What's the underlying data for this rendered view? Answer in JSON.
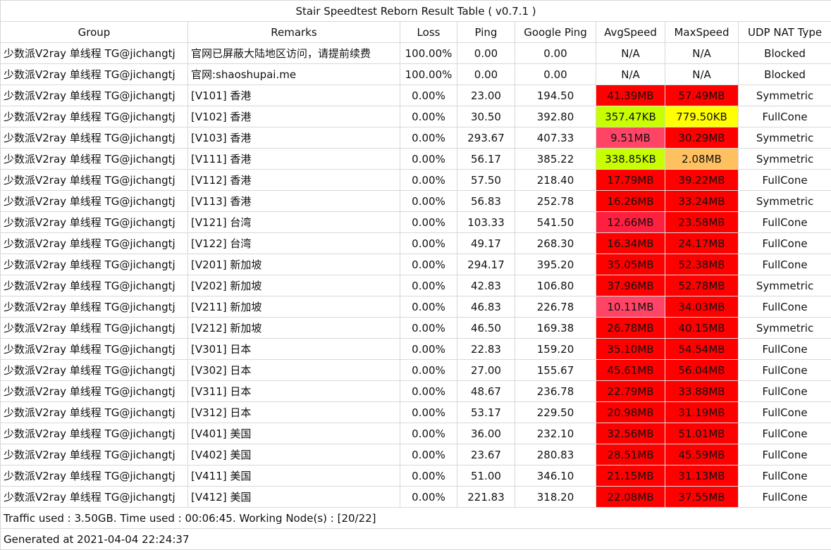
{
  "title": "Stair Speedtest Reborn Result Table ( v0.7.1 )",
  "headers": [
    "Group",
    "Remarks",
    "Loss",
    "Ping",
    "Google Ping",
    "AvgSpeed",
    "MaxSpeed",
    "UDP NAT Type"
  ],
  "rows": [
    [
      "少数派V2ray 单线程 TG@jichangtj",
      "官网已屏蔽大陆地区访问，请提前续费",
      "100.00%",
      "0.00",
      "0.00",
      "N/A",
      "N/A",
      "Blocked"
    ],
    [
      "少数派V2ray 单线程 TG@jichangtj",
      "官网:shaoshupai.me",
      "100.00%",
      "0.00",
      "0.00",
      "N/A",
      "N/A",
      "Blocked"
    ],
    [
      "少数派V2ray 单线程 TG@jichangtj",
      "[V101] 香港",
      "0.00%",
      "23.00",
      "194.50",
      "41.39MB",
      "57.49MB",
      "Symmetric"
    ],
    [
      "少数派V2ray 单线程 TG@jichangtj",
      "[V102] 香港",
      "0.00%",
      "30.50",
      "392.80",
      "357.47KB",
      "779.50KB",
      "FullCone"
    ],
    [
      "少数派V2ray 单线程 TG@jichangtj",
      "[V103] 香港",
      "0.00%",
      "293.67",
      "407.33",
      "9.51MB",
      "30.29MB",
      "Symmetric"
    ],
    [
      "少数派V2ray 单线程 TG@jichangtj",
      "[V111] 香港",
      "0.00%",
      "56.17",
      "385.22",
      "338.85KB",
      "2.08MB",
      "Symmetric"
    ],
    [
      "少数派V2ray 单线程 TG@jichangtj",
      "[V112] 香港",
      "0.00%",
      "57.50",
      "218.40",
      "17.79MB",
      "39.22MB",
      "FullCone"
    ],
    [
      "少数派V2ray 单线程 TG@jichangtj",
      "[V113] 香港",
      "0.00%",
      "56.83",
      "252.78",
      "16.26MB",
      "33.24MB",
      "Symmetric"
    ],
    [
      "少数派V2ray 单线程 TG@jichangtj",
      "[V121] 台湾",
      "0.00%",
      "103.33",
      "541.50",
      "12.66MB",
      "23.58MB",
      "FullCone"
    ],
    [
      "少数派V2ray 单线程 TG@jichangtj",
      "[V122] 台湾",
      "0.00%",
      "49.17",
      "268.30",
      "16.34MB",
      "24.17MB",
      "FullCone"
    ],
    [
      "少数派V2ray 单线程 TG@jichangtj",
      "[V201] 新加坡",
      "0.00%",
      "294.17",
      "395.20",
      "35.05MB",
      "52.38MB",
      "FullCone"
    ],
    [
      "少数派V2ray 单线程 TG@jichangtj",
      "[V202] 新加坡",
      "0.00%",
      "42.83",
      "106.80",
      "37.96MB",
      "52.78MB",
      "Symmetric"
    ],
    [
      "少数派V2ray 单线程 TG@jichangtj",
      "[V211] 新加坡",
      "0.00%",
      "46.83",
      "226.78",
      "10.11MB",
      "34.03MB",
      "FullCone"
    ],
    [
      "少数派V2ray 单线程 TG@jichangtj",
      "[V212] 新加坡",
      "0.00%",
      "46.50",
      "169.38",
      "26.78MB",
      "40.15MB",
      "Symmetric"
    ],
    [
      "少数派V2ray 单线程 TG@jichangtj",
      "[V301] 日本",
      "0.00%",
      "22.83",
      "159.20",
      "35.10MB",
      "54.54MB",
      "FullCone"
    ],
    [
      "少数派V2ray 单线程 TG@jichangtj",
      "[V302] 日本",
      "0.00%",
      "27.00",
      "155.67",
      "45.61MB",
      "56.04MB",
      "FullCone"
    ],
    [
      "少数派V2ray 单线程 TG@jichangtj",
      "[V311] 日本",
      "0.00%",
      "48.67",
      "236.78",
      "22.79MB",
      "33.88MB",
      "FullCone"
    ],
    [
      "少数派V2ray 单线程 TG@jichangtj",
      "[V312] 日本",
      "0.00%",
      "53.17",
      "229.50",
      "20.98MB",
      "31.19MB",
      "FullCone"
    ],
    [
      "少数派V2ray 单线程 TG@jichangtj",
      "[V401] 美国",
      "0.00%",
      "36.00",
      "232.10",
      "32.56MB",
      "51.01MB",
      "FullCone"
    ],
    [
      "少数派V2ray 单线程 TG@jichangtj",
      "[V402] 美国",
      "0.00%",
      "23.67",
      "280.83",
      "28.51MB",
      "45.59MB",
      "FullCone"
    ],
    [
      "少数派V2ray 单线程 TG@jichangtj",
      "[V411] 美国",
      "0.00%",
      "51.00",
      "346.10",
      "21.15MB",
      "31.13MB",
      "FullCone"
    ],
    [
      "少数派V2ray 单线程 TG@jichangtj",
      "[V412] 美国",
      "0.00%",
      "221.83",
      "318.20",
      "22.08MB",
      "37.55MB",
      "FullCone"
    ]
  ],
  "speed_colors": [
    [
      "",
      ""
    ],
    [
      "",
      ""
    ],
    [
      "#ff0000",
      "#ff0000"
    ],
    [
      "#c8ff00",
      "#ffff00"
    ],
    [
      "#ff4466",
      "#ff0000"
    ],
    [
      "#c8ff00",
      "#ffc060"
    ],
    [
      "#ff0000",
      "#ff0000"
    ],
    [
      "#ff0000",
      "#ff0000"
    ],
    [
      "#ff2040",
      "#ff0000"
    ],
    [
      "#ff0000",
      "#ff0000"
    ],
    [
      "#ff0000",
      "#ff0000"
    ],
    [
      "#ff0000",
      "#ff0000"
    ],
    [
      "#ff4466",
      "#ff0000"
    ],
    [
      "#ff0000",
      "#ff0000"
    ],
    [
      "#ff0000",
      "#ff0000"
    ],
    [
      "#ff0000",
      "#ff0000"
    ],
    [
      "#ff0000",
      "#ff0000"
    ],
    [
      "#ff0000",
      "#ff0000"
    ],
    [
      "#ff0000",
      "#ff0000"
    ],
    [
      "#ff0000",
      "#ff0000"
    ],
    [
      "#ff0000",
      "#ff0000"
    ],
    [
      "#ff0000",
      "#ff0000"
    ]
  ],
  "footer_traffic": "Traffic used : 3.50GB. Time used : 00:06:45. Working Node(s) : [20/22]",
  "footer_generated": "Generated at 2021-04-04 22:24:37"
}
